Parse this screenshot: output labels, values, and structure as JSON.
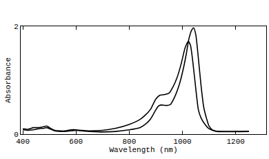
{
  "chart_data": {
    "type": "line",
    "x_label": "Wavelength (nm)",
    "y_label": "Absorbance",
    "xlim": [
      392,
      1315
    ],
    "ylim": [
      0,
      2
    ],
    "xticks": [
      400,
      600,
      800,
      1000,
      1200
    ],
    "yticks": [
      0,
      2
    ],
    "grid": false,
    "series": [
      {
        "color": "#000000",
        "x": [
          400,
          420,
          440,
          460,
          480,
          490,
          500,
          520,
          540,
          560,
          580,
          600,
          620,
          650,
          700,
          750,
          800,
          840,
          860,
          880,
          900,
          910,
          920,
          940,
          955,
          970,
          990,
          1005,
          1015,
          1025,
          1035,
          1042,
          1050,
          1060,
          1070,
          1080,
          1090,
          1100,
          1115,
          1130,
          1250
        ],
        "values": [
          0.08,
          0.07,
          0.08,
          0.1,
          0.11,
          0.12,
          0.1,
          0.06,
          0.05,
          0.05,
          0.06,
          0.07,
          0.06,
          0.05,
          0.04,
          0.05,
          0.08,
          0.12,
          0.18,
          0.28,
          0.45,
          0.52,
          0.54,
          0.53,
          0.55,
          0.68,
          0.95,
          1.25,
          1.5,
          1.78,
          1.93,
          1.97,
          1.85,
          1.4,
          0.9,
          0.5,
          0.3,
          0.15,
          0.07,
          0.05,
          0.05
        ]
      },
      {
        "color": "#000000",
        "x": [
          400,
          420,
          440,
          460,
          480,
          490,
          500,
          520,
          540,
          560,
          580,
          600,
          620,
          650,
          700,
          750,
          800,
          840,
          860,
          880,
          900,
          915,
          930,
          950,
          965,
          980,
          995,
          1010,
          1022,
          1030,
          1040,
          1050,
          1060,
          1070,
          1085,
          1100,
          1120,
          1135,
          1250
        ],
        "values": [
          0.1,
          0.09,
          0.12,
          0.12,
          0.14,
          0.15,
          0.12,
          0.07,
          0.06,
          0.06,
          0.08,
          0.08,
          0.07,
          0.06,
          0.07,
          0.11,
          0.18,
          0.27,
          0.35,
          0.46,
          0.65,
          0.72,
          0.73,
          0.76,
          0.88,
          1.05,
          1.3,
          1.6,
          1.72,
          1.65,
          1.3,
          0.85,
          0.45,
          0.3,
          0.18,
          0.1,
          0.06,
          0.05,
          0.05
        ]
      }
    ]
  }
}
